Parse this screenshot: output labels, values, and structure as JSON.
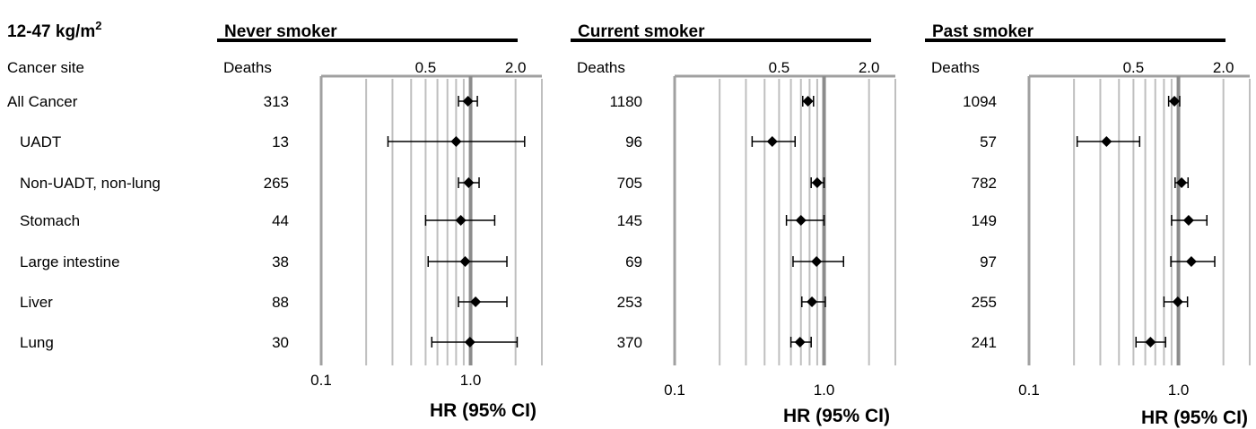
{
  "bmi_label": "12-47 kg/m",
  "bmi_sup": "2",
  "left_header": "Cancer site",
  "sites": [
    "All Cancer",
    "UADT",
    "Non-UADT, non-lung",
    "Stomach",
    "Large intestine",
    "Liver",
    "Lung"
  ],
  "deaths_header": "Deaths",
  "top_ticks": [
    "0.5",
    "2.0"
  ],
  "bottom_ticks": [
    "0.1",
    "1.0"
  ],
  "xlabel": "HR (95% CI)",
  "chart_data": [
    {
      "type": "forest",
      "title": "Never smoker",
      "xscale": "log",
      "xlim": [
        0.1,
        3.0
      ],
      "reference_line": 1.0,
      "grid": true,
      "xlabel": "HR (95% CI)",
      "categories": [
        "All Cancer",
        "UADT",
        "Non-UADT, non-lung",
        "Stomach",
        "Large intestine",
        "Liver",
        "Lung"
      ],
      "deaths": [
        "313",
        "13",
        "265",
        "44",
        "38",
        "88",
        "30"
      ],
      "hr": [
        0.96,
        0.8,
        0.97,
        0.86,
        0.92,
        1.08,
        0.99
      ],
      "ci_low": [
        0.83,
        0.28,
        0.83,
        0.5,
        0.52,
        0.83,
        0.55
      ],
      "ci_high": [
        1.11,
        2.3,
        1.14,
        1.45,
        1.75,
        1.75,
        2.05
      ]
    },
    {
      "type": "forest",
      "title": "Current smoker",
      "xscale": "log",
      "xlim": [
        0.1,
        3.0
      ],
      "reference_line": 1.0,
      "grid": true,
      "xlabel": "HR (95% CI)",
      "categories": [
        "All Cancer",
        "UADT",
        "Non-UADT, non-lung",
        "Stomach",
        "Large intestine",
        "Liver",
        "Lung"
      ],
      "deaths": [
        "1180",
        "96",
        "705",
        "145",
        "69",
        "253",
        "370"
      ],
      "hr": [
        0.78,
        0.45,
        0.9,
        0.7,
        0.89,
        0.83,
        0.69
      ],
      "ci_low": [
        0.72,
        0.33,
        0.82,
        0.56,
        0.62,
        0.71,
        0.6
      ],
      "ci_high": [
        0.85,
        0.64,
        1.0,
        1.0,
        1.35,
        1.02,
        0.82
      ]
    },
    {
      "type": "forest",
      "title": "Past smoker",
      "xscale": "log",
      "xlim": [
        0.1,
        3.0
      ],
      "reference_line": 1.0,
      "grid": true,
      "xlabel": "HR (95% CI)",
      "categories": [
        "All Cancer",
        "UADT",
        "Non-UADT, non-lung",
        "Stomach",
        "Large intestine",
        "Liver",
        "Lung"
      ],
      "deaths": [
        "1094",
        "57",
        "782",
        "149",
        "97",
        "255",
        "241"
      ],
      "hr": [
        0.94,
        0.33,
        1.05,
        1.17,
        1.22,
        0.99,
        0.65
      ],
      "ci_low": [
        0.86,
        0.21,
        0.95,
        0.9,
        0.89,
        0.8,
        0.52
      ],
      "ci_high": [
        1.02,
        0.55,
        1.16,
        1.55,
        1.75,
        1.15,
        0.82
      ]
    }
  ]
}
